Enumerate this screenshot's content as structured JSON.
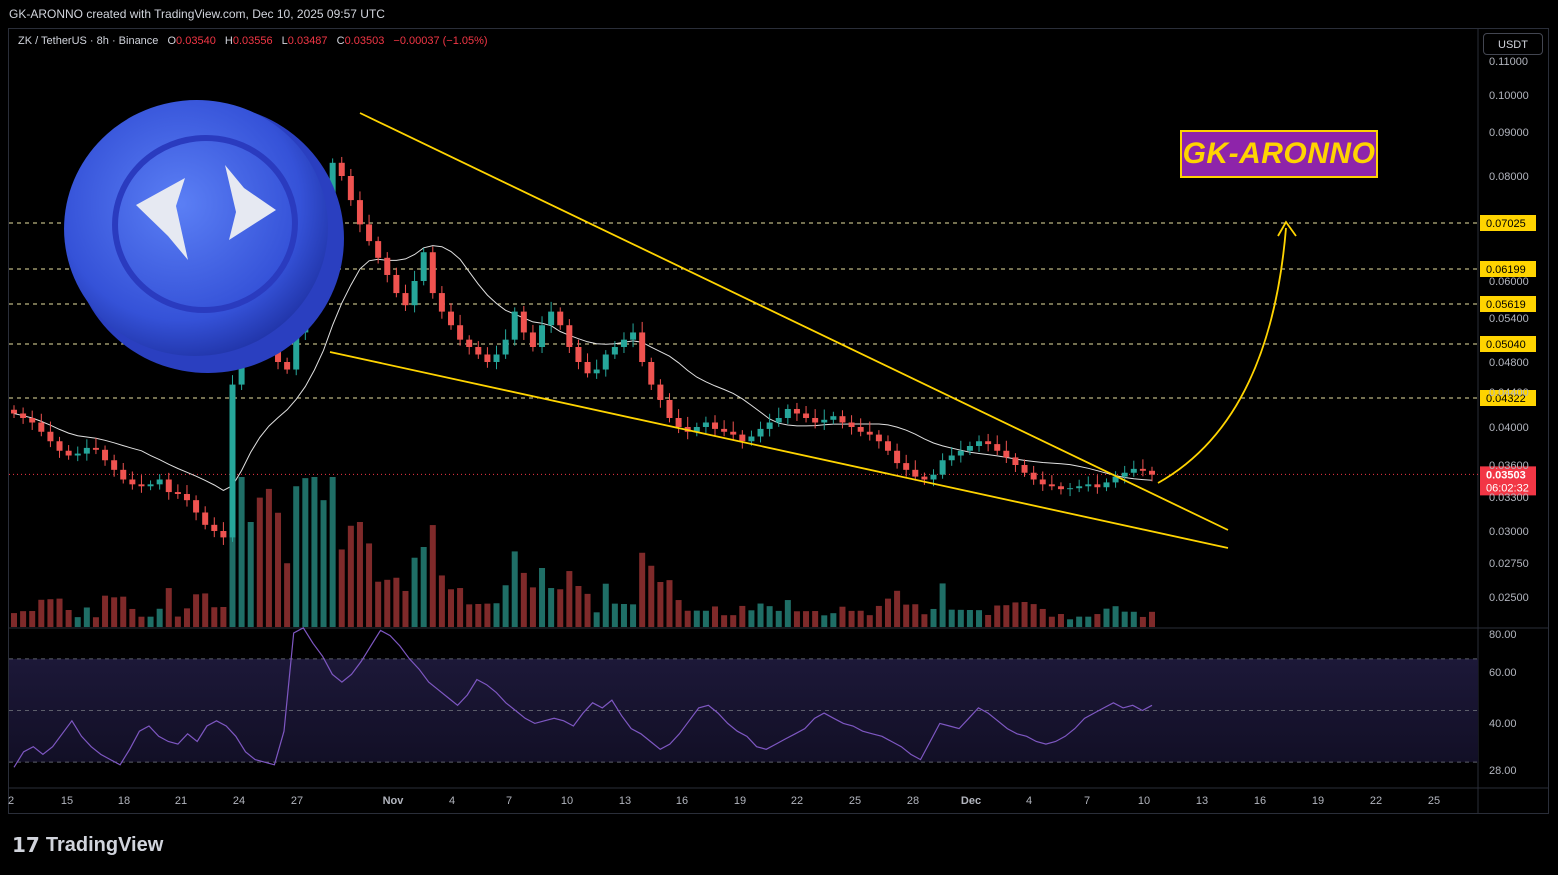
{
  "header": {
    "credit": "GK-ARONNO created with TradingView.com, Dec 10, 2025 09:57 UTC"
  },
  "legend": {
    "symbol": "ZK / TetherUS · 8h · Binance",
    "o_label": "O",
    "o": "0.03540",
    "h_label": "H",
    "h": "0.03556",
    "l_label": "L",
    "l": "0.03487",
    "c_label": "C",
    "c": "0.03503",
    "change": "−0.00037 (−1.05%)"
  },
  "currency_button": "USDT",
  "watermark": "GK-ARONNO",
  "brand": {
    "glyph": "17",
    "name": "TradingView"
  },
  "colors": {
    "up": "#26a69a",
    "down": "#ef5350",
    "trendline": "#ffd400",
    "rsi": "#7e57c2",
    "ma": "#e0e0e0",
    "watermark_bg": "#8e24aa",
    "price_tag": "#f23645"
  },
  "chart_data": [
    {
      "type": "candlestick",
      "symbol": "ZK/USDT",
      "timeframe": "8h",
      "x_ticks": [
        "2",
        "15",
        "18",
        "21",
        "24",
        "27",
        "Nov",
        "4",
        "7",
        "10",
        "13",
        "16",
        "19",
        "22",
        "25",
        "28",
        "Dec",
        "4",
        "7",
        "10",
        "13",
        "16",
        "19",
        "22",
        "25"
      ],
      "y_ticks": [
        "0.11000",
        "0.10000",
        "0.09000",
        "0.08000",
        "0.06000",
        "0.05400",
        "0.04800",
        "0.04400",
        "0.04000",
        "0.03600",
        "0.03300",
        "0.03000",
        "0.02750",
        "0.02500"
      ],
      "horizontal_levels": [
        "0.07025",
        "0.06199",
        "0.05619",
        "0.05040",
        "0.04322"
      ],
      "last_price": "0.03503",
      "countdown": "06:02:32",
      "pattern": "falling wedge",
      "close_path": [
        0.0415,
        0.041,
        0.0405,
        0.0395,
        0.0385,
        0.0375,
        0.037,
        0.0372,
        0.0378,
        0.0376,
        0.0365,
        0.0355,
        0.0345,
        0.034,
        0.0338,
        0.034,
        0.0345,
        0.0332,
        0.033,
        0.0325,
        0.0315,
        0.0305,
        0.03,
        0.0295,
        0.045,
        0.06,
        0.064,
        0.058,
        0.052,
        0.048,
        0.047,
        0.052,
        0.058,
        0.066,
        0.072,
        0.083,
        0.08,
        0.075,
        0.07,
        0.067,
        0.064,
        0.061,
        0.058,
        0.056,
        0.06,
        0.065,
        0.058,
        0.055,
        0.053,
        0.051,
        0.05,
        0.049,
        0.048,
        0.049,
        0.051,
        0.055,
        0.052,
        0.05,
        0.053,
        0.055,
        0.053,
        0.05,
        0.048,
        0.0465,
        0.047,
        0.049,
        0.05,
        0.051,
        0.052,
        0.048,
        0.045,
        0.043,
        0.041,
        0.04,
        0.0395,
        0.04,
        0.0405,
        0.0398,
        0.0395,
        0.0392,
        0.0385,
        0.039,
        0.0398,
        0.0405,
        0.041,
        0.042,
        0.0415,
        0.041,
        0.0405,
        0.0408,
        0.0412,
        0.0405,
        0.04,
        0.0395,
        0.0392,
        0.0385,
        0.0375,
        0.0362,
        0.0355,
        0.0348,
        0.0345,
        0.035,
        0.0365,
        0.037,
        0.0375,
        0.038,
        0.0385,
        0.0382,
        0.0375,
        0.0368,
        0.036,
        0.0352,
        0.0345,
        0.034,
        0.0338,
        0.0335,
        0.0336,
        0.0338,
        0.034,
        0.0337,
        0.0342,
        0.0348,
        0.0352,
        0.0356,
        0.0354,
        0.035
      ]
    },
    {
      "type": "line",
      "name": "RSI",
      "y_ticks": [
        "80.00",
        "60.00",
        "40.00",
        "28.00"
      ],
      "ylim": [
        20,
        80
      ],
      "bands": [
        70,
        30
      ],
      "mid": 50,
      "values": [
        28,
        34,
        36,
        33,
        36,
        41,
        46,
        40,
        36,
        33,
        31,
        29,
        35,
        42,
        44,
        40,
        38,
        37,
        41,
        38,
        44,
        46,
        44,
        40,
        34,
        31,
        30,
        29,
        42,
        80,
        82,
        76,
        71,
        64,
        61,
        64,
        69,
        75,
        81,
        79,
        75,
        70,
        66,
        61,
        58,
        55,
        52,
        56,
        62,
        60,
        57,
        53,
        50,
        47,
        45,
        46,
        47,
        46,
        44,
        49,
        53,
        51,
        54,
        48,
        43,
        41,
        38,
        35,
        37,
        41,
        46,
        51,
        52,
        49,
        45,
        42,
        40,
        36,
        35,
        37,
        39,
        41,
        43,
        47,
        49,
        47,
        45,
        44,
        42,
        41,
        40,
        38,
        36,
        33,
        31,
        38,
        45,
        44,
        43,
        47,
        51,
        49,
        46,
        43,
        41,
        40,
        38,
        37,
        38,
        40,
        43,
        47,
        49,
        51,
        53,
        51,
        52,
        50,
        52
      ]
    }
  ]
}
